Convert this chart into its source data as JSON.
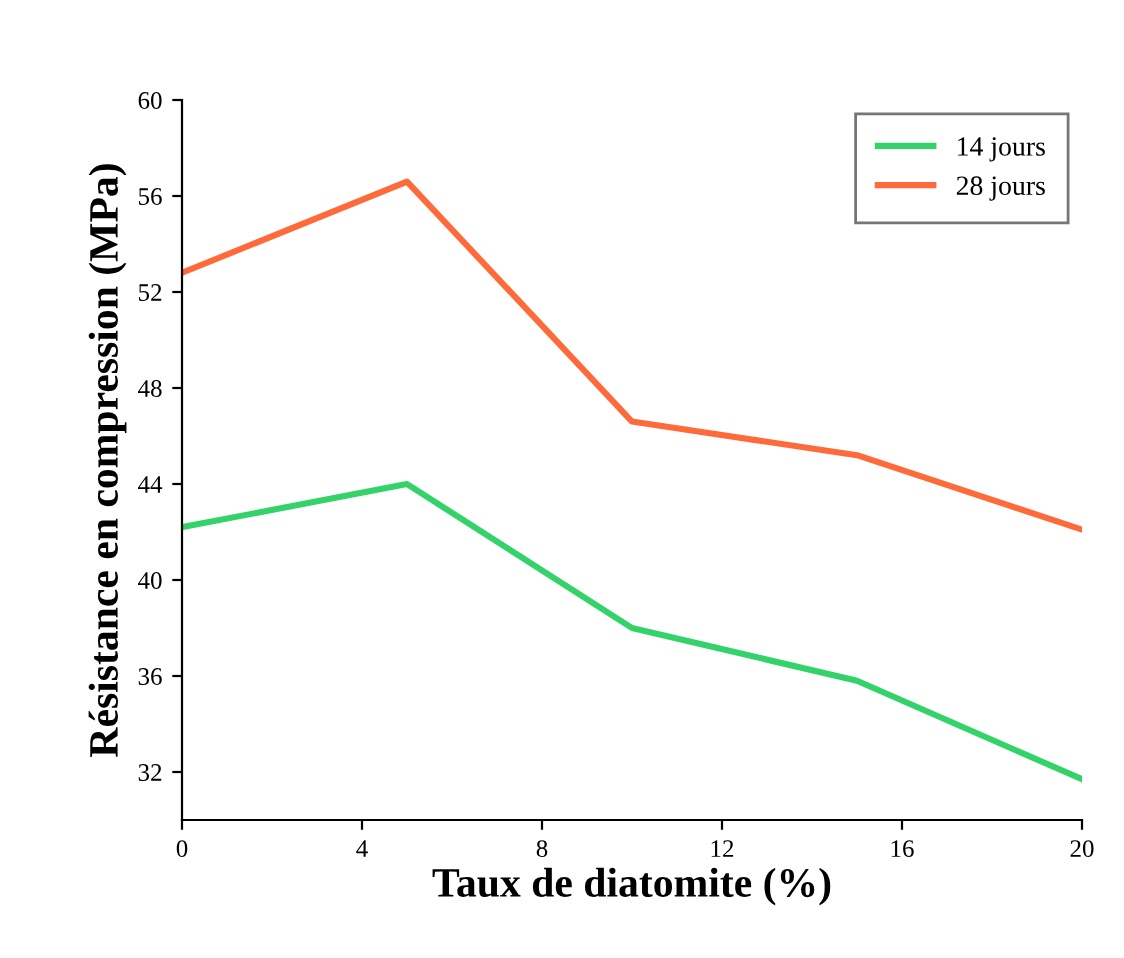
{
  "chart_data": {
    "type": "line",
    "xlabel": "Taux de diatomite (%)",
    "ylabel": "Résistance en compression (MPa)",
    "x": [
      0,
      5,
      10,
      15,
      20
    ],
    "series": [
      {
        "name": "14 jours",
        "color": "#33d36a",
        "values": [
          42.2,
          44.0,
          38.0,
          35.8,
          31.7
        ]
      },
      {
        "name": "28 jours",
        "color": "#ff6a3a",
        "values": [
          52.8,
          56.6,
          46.6,
          45.2,
          42.1
        ]
      }
    ],
    "xlim": [
      0,
      20
    ],
    "xticks": [
      0,
      4,
      8,
      12,
      16,
      20
    ],
    "ylim": [
      30,
      60
    ],
    "yticks": [
      32,
      36,
      40,
      44,
      48,
      52,
      56,
      60
    ],
    "grid": false,
    "legend": "top right",
    "marker": "none",
    "line_style": "solid"
  }
}
